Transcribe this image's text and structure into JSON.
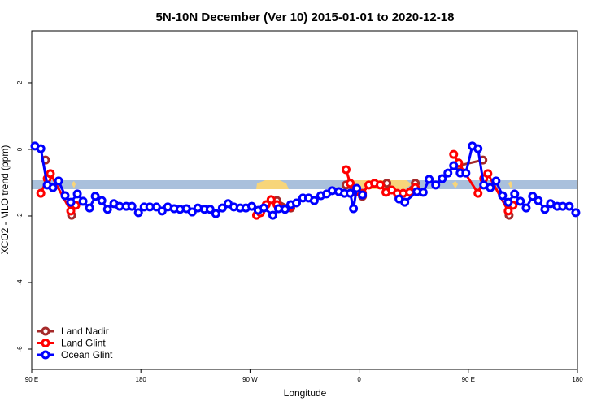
{
  "chart_data": {
    "type": "line",
    "title": "5N-10N December (Ver 10)   2015-01-01 to 2020-12-18",
    "xlabel": "Longitude",
    "ylabel": "XCO2 - MLO trend (ppm)",
    "xlim": [
      90,
      540
    ],
    "ylim": [
      -6.61,
      3.56
    ],
    "xticks": [
      {
        "value": 90,
        "label": "90 E"
      },
      {
        "value": 180,
        "label": "180"
      },
      {
        "value": 270,
        "label": "90 W"
      },
      {
        "value": 360,
        "label": "0"
      },
      {
        "value": 450,
        "label": "90 E"
      },
      {
        "value": 540,
        "label": "180"
      }
    ],
    "yticks": [
      2,
      0,
      -2,
      -4,
      -6
    ],
    "legend": "bottom-left",
    "series": [
      {
        "name": "Land Nadir",
        "color": "#a52a2a",
        "x": [
          101.4,
          122.9,
          292.2,
          303.6,
          349.2,
          362.7,
          382.8,
          392.9,
          406.3,
          442,
          462,
          483.6
        ],
        "values": [
          -0.32,
          -1.98,
          -1.54,
          -1.76,
          -1.07,
          -1.41,
          -1.02,
          -1.46,
          -1.02,
          -0.49,
          -0.32,
          -1.98
        ]
      },
      {
        "name": "Land Glint",
        "color": "#ff0000",
        "x": [
          97.5,
          102.8,
          105.4,
          122.2,
          126.3,
          275.4,
          278.7,
          283.4,
          287.4,
          292.2,
          302.9,
          349.2,
          352.6,
          357.3,
          362.7,
          368,
          372.7,
          377.4,
          382.1,
          386.8,
          391.5,
          396.3,
          401.6,
          406.3,
          437.9,
          442,
          458,
          462.7,
          466.1,
          482.9,
          486.9
        ],
        "values": [
          -1.32,
          -0.88,
          -0.73,
          -1.85,
          -1.68,
          -1.98,
          -1.9,
          -1.66,
          -1.51,
          -1.66,
          -1.73,
          -0.61,
          -1.02,
          -1.27,
          -1.32,
          -1.07,
          -1.02,
          -1.07,
          -1.29,
          -1.22,
          -1.32,
          -1.32,
          -1.29,
          -1.15,
          -0.15,
          -0.41,
          -1.32,
          -0.88,
          -0.73,
          -1.85,
          -1.68
        ]
      },
      {
        "name": "Ocean Glint",
        "color": "#0000ff",
        "x": [
          92.7,
          97.5,
          102.8,
          107.5,
          112.2,
          117.5,
          122.2,
          127.6,
          132.3,
          137.7,
          142.4,
          147.8,
          152.5,
          157.8,
          162.5,
          167.9,
          172.6,
          178,
          182.7,
          187.4,
          192.8,
          197.5,
          202.2,
          207.5,
          212.3,
          217.6,
          222.3,
          227,
          232.4,
          237.1,
          241.8,
          247.2,
          251.9,
          256.6,
          261.9,
          266.6,
          271.4,
          276.7,
          281.4,
          288.8,
          293.5,
          298.9,
          303.6,
          308.3,
          313.6,
          318.3,
          323,
          328.4,
          333.1,
          337.8,
          343.2,
          347.9,
          352.6,
          355.3,
          358,
          362.7,
          392.9,
          397.6,
          407.7,
          412.8,
          417.7,
          423.1,
          428.5,
          433.2,
          437.9,
          443.3,
          448,
          453.3,
          458,
          462.7,
          468.1,
          472.8,
          478.2,
          482.9,
          488.2,
          492.9,
          497.7,
          503,
          507.7,
          513.1,
          517.8,
          523.2,
          527.9,
          533.2,
          538.6
        ],
        "values": [
          0.1,
          0.02,
          -1.07,
          -1.15,
          -0.95,
          -1.39,
          -1.59,
          -1.34,
          -1.56,
          -1.76,
          -1.41,
          -1.54,
          -1.8,
          -1.63,
          -1.71,
          -1.71,
          -1.71,
          -1.9,
          -1.73,
          -1.73,
          -1.73,
          -1.85,
          -1.73,
          -1.78,
          -1.8,
          -1.78,
          -1.88,
          -1.76,
          -1.8,
          -1.8,
          -1.93,
          -1.76,
          -1.63,
          -1.73,
          -1.76,
          -1.76,
          -1.71,
          -1.83,
          -1.76,
          -1.98,
          -1.78,
          -1.8,
          -1.66,
          -1.61,
          -1.46,
          -1.46,
          -1.54,
          -1.39,
          -1.34,
          -1.24,
          -1.27,
          -1.32,
          -1.32,
          -1.78,
          -1.17,
          -1.37,
          -1.49,
          -1.59,
          -1.27,
          -1.29,
          -0.9,
          -1.07,
          -0.88,
          -0.71,
          -0.49,
          -0.71,
          -0.71,
          0.1,
          0.02,
          -1.07,
          -1.15,
          -0.95,
          -1.39,
          -1.59,
          -1.34,
          -1.56,
          -1.76,
          -1.41,
          -1.54,
          -1.8,
          -1.63,
          -1.71,
          -1.71,
          -1.71,
          -1.9
        ]
      }
    ]
  }
}
